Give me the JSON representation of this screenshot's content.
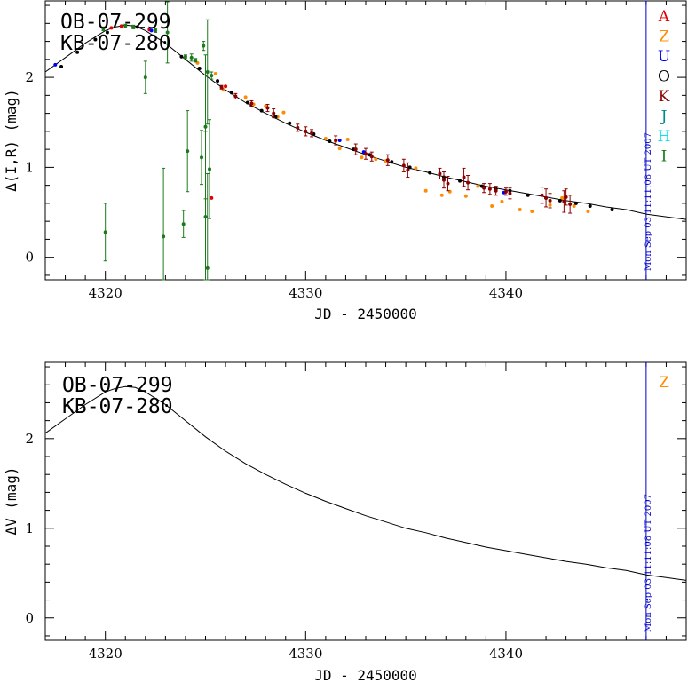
{
  "chart_data": [
    {
      "type": "scatter",
      "xlabel": "JD - 2450000",
      "ylabel": "Δ(I,R) (mag)",
      "xlim": [
        4317,
        4349
      ],
      "ylim": [
        -0.25,
        2.85
      ],
      "xticks_major": [
        4320,
        4330,
        4340
      ],
      "yticks_major": [
        0,
        1,
        2
      ],
      "event_labels": [
        "OB-07-299",
        "KB-07-280"
      ],
      "timestamp": "Mon Sep 03 11:11:08 UT 2007",
      "vline_x": 4347.0,
      "legend": [
        {
          "code": "A",
          "color": "#e00000"
        },
        {
          "code": "Z",
          "color": "#ff8c00"
        },
        {
          "code": "U",
          "color": "#0000ff"
        },
        {
          "code": "O",
          "color": "#000000"
        },
        {
          "code": "K",
          "color": "#8b0000"
        },
        {
          "code": "J",
          "color": "#008b8b"
        },
        {
          "code": "H",
          "color": "#00e5ee"
        },
        {
          "code": "I",
          "color": "#1b7a1b"
        }
      ],
      "model_curve": {
        "name": "model",
        "x": [
          4317,
          4318,
          4319,
          4320,
          4320.5,
          4321,
          4321.5,
          4322,
          4323,
          4324,
          4325,
          4326,
          4327,
          4328,
          4329,
          4330,
          4331,
          4332,
          4333,
          4334,
          4335,
          4336,
          4337,
          4338,
          4339,
          4340,
          4341,
          4342,
          4343,
          4344,
          4345,
          4346,
          4347,
          4348,
          4349
        ],
        "y": [
          2.06,
          2.22,
          2.38,
          2.52,
          2.56,
          2.58,
          2.57,
          2.52,
          2.38,
          2.2,
          2.02,
          1.86,
          1.72,
          1.6,
          1.49,
          1.39,
          1.3,
          1.22,
          1.14,
          1.07,
          1.0,
          0.95,
          0.89,
          0.84,
          0.79,
          0.75,
          0.71,
          0.67,
          0.63,
          0.6,
          0.56,
          0.53,
          0.48,
          0.45,
          0.42
        ]
      },
      "series": [
        {
          "name": "A",
          "color": "#e00000",
          "x": [
            4320.3,
            4320.8,
            4321.4,
            4322.2,
            4325.3,
            4326.0
          ],
          "y": [
            2.55,
            2.57,
            2.56,
            2.53,
            0.66,
            1.9
          ],
          "err": [
            0.01,
            0.01,
            0.01,
            0.01,
            0.01,
            0.01
          ]
        },
        {
          "name": "Z",
          "color": "#ff8c00",
          "x": [
            4324.6,
            4325.5,
            4325.9,
            4327.0,
            4327.4,
            4328.0,
            4328.6,
            4328.9,
            4330.0,
            4331.0,
            4331.5,
            4331.7,
            4332.1,
            4332.8,
            4333.5,
            4334.0,
            4335.5,
            4336.0,
            4336.8,
            4337.2,
            4338.0,
            4338.6,
            4339.3,
            4339.8,
            4340.7,
            4341.3,
            4342.2,
            4342.8,
            4343.4,
            4344.1
          ],
          "y": [
            2.16,
            2.04,
            1.86,
            1.78,
            1.7,
            1.68,
            1.56,
            1.61,
            1.4,
            1.32,
            1.29,
            1.21,
            1.31,
            1.11,
            1.09,
            1.07,
            0.99,
            0.74,
            0.69,
            0.73,
            0.68,
            0.79,
            0.57,
            0.62,
            0.53,
            0.51,
            0.58,
            0.66,
            0.57,
            0.51
          ],
          "err": [
            0.01,
            0.01,
            0.01,
            0.01,
            0.01,
            0.01,
            0.01,
            0.01,
            0.01,
            0.01,
            0.01,
            0.01,
            0.01,
            0.01,
            0.01,
            0.01,
            0.01,
            0.01,
            0.01,
            0.01,
            0.01,
            0.01,
            0.01,
            0.01,
            0.01,
            0.01,
            0.01,
            0.01,
            0.01,
            0.01
          ]
        },
        {
          "name": "U",
          "color": "#0000ff",
          "x": [
            4317.5,
            4322.3,
            4331.7,
            4332.9,
            4339.9
          ],
          "y": [
            2.14,
            2.52,
            1.3,
            1.17,
            0.72
          ],
          "err": [
            0.01,
            0.01,
            0.01,
            0.01,
            0.01
          ]
        },
        {
          "name": "O",
          "color": "#000000",
          "x": [
            4317.8,
            4318.6,
            4319.5,
            4320.1,
            4321.6,
            4323.8,
            4324.7,
            4325.6,
            4326.3,
            4327.1,
            4327.8,
            4328.5,
            4329.2,
            4330.4,
            4331.2,
            4332.4,
            4333.2,
            4334.3,
            4335.2,
            4336.2,
            4336.9,
            4337.7,
            4338.8,
            4339.5,
            4340.2,
            4341.1,
            4342.0,
            4342.7,
            4343.5,
            4344.2,
            4345.3
          ],
          "y": [
            2.12,
            2.28,
            2.42,
            2.5,
            2.56,
            2.23,
            2.1,
            1.96,
            1.83,
            1.72,
            1.63,
            1.56,
            1.49,
            1.37,
            1.29,
            1.2,
            1.14,
            1.06,
            1.0,
            0.94,
            0.89,
            0.85,
            0.79,
            0.76,
            0.74,
            0.69,
            0.66,
            0.63,
            0.6,
            0.57,
            0.53
          ],
          "err": [
            0.01,
            0.01,
            0.01,
            0.01,
            0.01,
            0.01,
            0.01,
            0.01,
            0.01,
            0.01,
            0.01,
            0.01,
            0.01,
            0.01,
            0.01,
            0.01,
            0.01,
            0.01,
            0.01,
            0.01,
            0.01,
            0.01,
            0.01,
            0.01,
            0.01,
            0.01,
            0.01,
            0.01,
            0.01,
            0.01,
            0.01
          ]
        },
        {
          "name": "K",
          "color": "#8b0000",
          "x": [
            4325.8,
            4326.5,
            4327.3,
            4328.1,
            4328.4,
            4329.6,
            4330.0,
            4330.3,
            4331.5,
            4332.5,
            4333.0,
            4333.3,
            4334.1,
            4334.9,
            4335.1,
            4336.7,
            4336.9,
            4337.1,
            4337.9,
            4338.1,
            4338.9,
            4339.2,
            4339.5,
            4340.0,
            4340.2,
            4341.8,
            4342.0,
            4342.2,
            4342.9,
            4343.0,
            4343.2
          ],
          "y": [
            1.89,
            1.79,
            1.71,
            1.66,
            1.6,
            1.44,
            1.4,
            1.38,
            1.3,
            1.2,
            1.15,
            1.12,
            1.08,
            1.02,
            0.97,
            0.93,
            0.86,
            0.82,
            0.89,
            0.83,
            0.77,
            0.76,
            0.74,
            0.73,
            0.71,
            0.69,
            0.66,
            0.63,
            0.62,
            0.67,
            0.59
          ],
          "err": [
            0.02,
            0.03,
            0.03,
            0.04,
            0.05,
            0.04,
            0.05,
            0.04,
            0.05,
            0.06,
            0.06,
            0.05,
            0.06,
            0.07,
            0.08,
            0.06,
            0.09,
            0.08,
            0.1,
            0.08,
            0.05,
            0.06,
            0.05,
            0.04,
            0.06,
            0.09,
            0.1,
            0.08,
            0.12,
            0.09,
            0.1
          ]
        },
        {
          "name": "I",
          "color": "#1b7a1b",
          "x": [
            4320.0,
            4321.0,
            4322.0,
            4322.9,
            4323.1,
            4323.9,
            4324.1,
            4324.3,
            4324.8,
            4324.9,
            4325.0,
            4325.0,
            4325.1,
            4325.1,
            4325.2,
            4325.3,
            4319.9,
            4321.4,
            4322.5,
            4324.0,
            4324.5
          ],
          "y": [
            0.28,
            2.57,
            2.0,
            0.23,
            2.5,
            0.37,
            1.18,
            2.22,
            1.11,
            2.35,
            0.45,
            1.45,
            2.06,
            -0.12,
            0.98,
            2.02,
            2.54,
            2.56,
            2.52,
            2.23,
            2.19
          ],
          "err": [
            0.32,
            0.02,
            0.18,
            0.76,
            0.34,
            0.15,
            0.45,
            0.04,
            0.3,
            0.05,
            0.95,
            0.8,
            0.58,
            1.05,
            0.55,
            0.04,
            0.02,
            0.02,
            0.02,
            0.02,
            0.02
          ]
        }
      ]
    },
    {
      "type": "line",
      "xlabel": "JD - 2450000",
      "ylabel": "ΔV (mag)",
      "xlim": [
        4317,
        4349
      ],
      "ylim": [
        -0.25,
        2.85
      ],
      "xticks_major": [
        4320,
        4330,
        4340
      ],
      "yticks_major": [
        0,
        1,
        2
      ],
      "event_labels": [
        "OB-07-299",
        "KB-07-280"
      ],
      "timestamp": "Mon Sep 03 11:11:08 UT 2007",
      "vline_x": 4347.0,
      "legend": [
        {
          "code": "Z",
          "color": "#ff8c00"
        }
      ],
      "model_curve": {
        "name": "model",
        "x": [
          4317,
          4318,
          4319,
          4320,
          4320.5,
          4321,
          4321.5,
          4322,
          4323,
          4324,
          4325,
          4326,
          4327,
          4328,
          4329,
          4330,
          4331,
          4332,
          4333,
          4334,
          4335,
          4336,
          4337,
          4338,
          4339,
          4340,
          4341,
          4342,
          4343,
          4344,
          4345,
          4346,
          4347,
          4348,
          4349
        ],
        "y": [
          2.06,
          2.22,
          2.38,
          2.52,
          2.56,
          2.58,
          2.57,
          2.52,
          2.38,
          2.2,
          2.02,
          1.86,
          1.72,
          1.6,
          1.49,
          1.39,
          1.3,
          1.22,
          1.14,
          1.07,
          1.0,
          0.95,
          0.89,
          0.84,
          0.79,
          0.75,
          0.71,
          0.67,
          0.63,
          0.6,
          0.56,
          0.53,
          0.48,
          0.45,
          0.42
        ]
      },
      "series": []
    }
  ]
}
